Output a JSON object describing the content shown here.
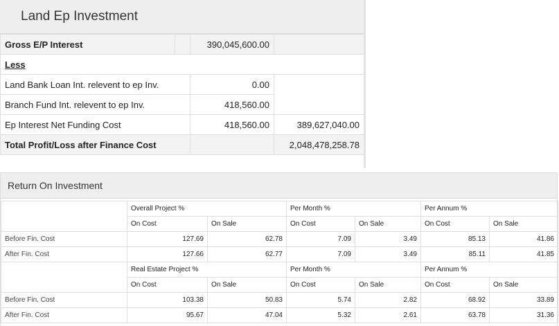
{
  "land_ep": {
    "title": "Land Ep Investment",
    "rows": [
      {
        "label": "Gross E/P Interest",
        "col1": "",
        "col2": "390,045,600.00",
        "col3": ""
      },
      {
        "label": "Less",
        "col1": "",
        "col2": "",
        "col3": ""
      },
      {
        "label": "Land Bank Loan Int. relevent to ep Inv.",
        "col1": "",
        "col2": "0.00",
        "col3": ""
      },
      {
        "label": "Branch Fund Int. relevent to ep Inv.",
        "col1": "",
        "col2": "418,560.00",
        "col3": ""
      },
      {
        "label": "Ep Interest Net Funding Cost",
        "col1": "",
        "col2": "418,560.00",
        "col3": "389,627,040.00"
      },
      {
        "label": "Total Profit/Loss after Finance Cost",
        "col1": "",
        "col2": "",
        "col3": "2,048,478,258.78"
      }
    ]
  },
  "roi": {
    "title": "Return On Investment",
    "group_headers": {
      "overall": "Overall Project %",
      "real_estate": "Real Estate Project %",
      "per_month": "Per Month %",
      "per_annum": "Per Annum %"
    },
    "sub_headers": {
      "on_cost": "On Cost",
      "on_sale": "On Sale"
    },
    "overall_rows": [
      {
        "label": "Before Fin. Cost",
        "values": [
          "127.69",
          "62.78",
          "7.09",
          "3.49",
          "85.13",
          "41.86"
        ]
      },
      {
        "label": "After Fin. Cost",
        "values": [
          "127.66",
          "62.77",
          "7.09",
          "3.49",
          "85.11",
          "41.85"
        ]
      }
    ],
    "real_estate_rows": [
      {
        "label": "Before Fin. Cost",
        "values": [
          "103.38",
          "50.83",
          "5.74",
          "2.82",
          "68.92",
          "33.89"
        ]
      },
      {
        "label": "After Fin. Cost",
        "values": [
          "95.67",
          "47.04",
          "5.32",
          "2.61",
          "63.78",
          "31.36"
        ]
      }
    ]
  }
}
